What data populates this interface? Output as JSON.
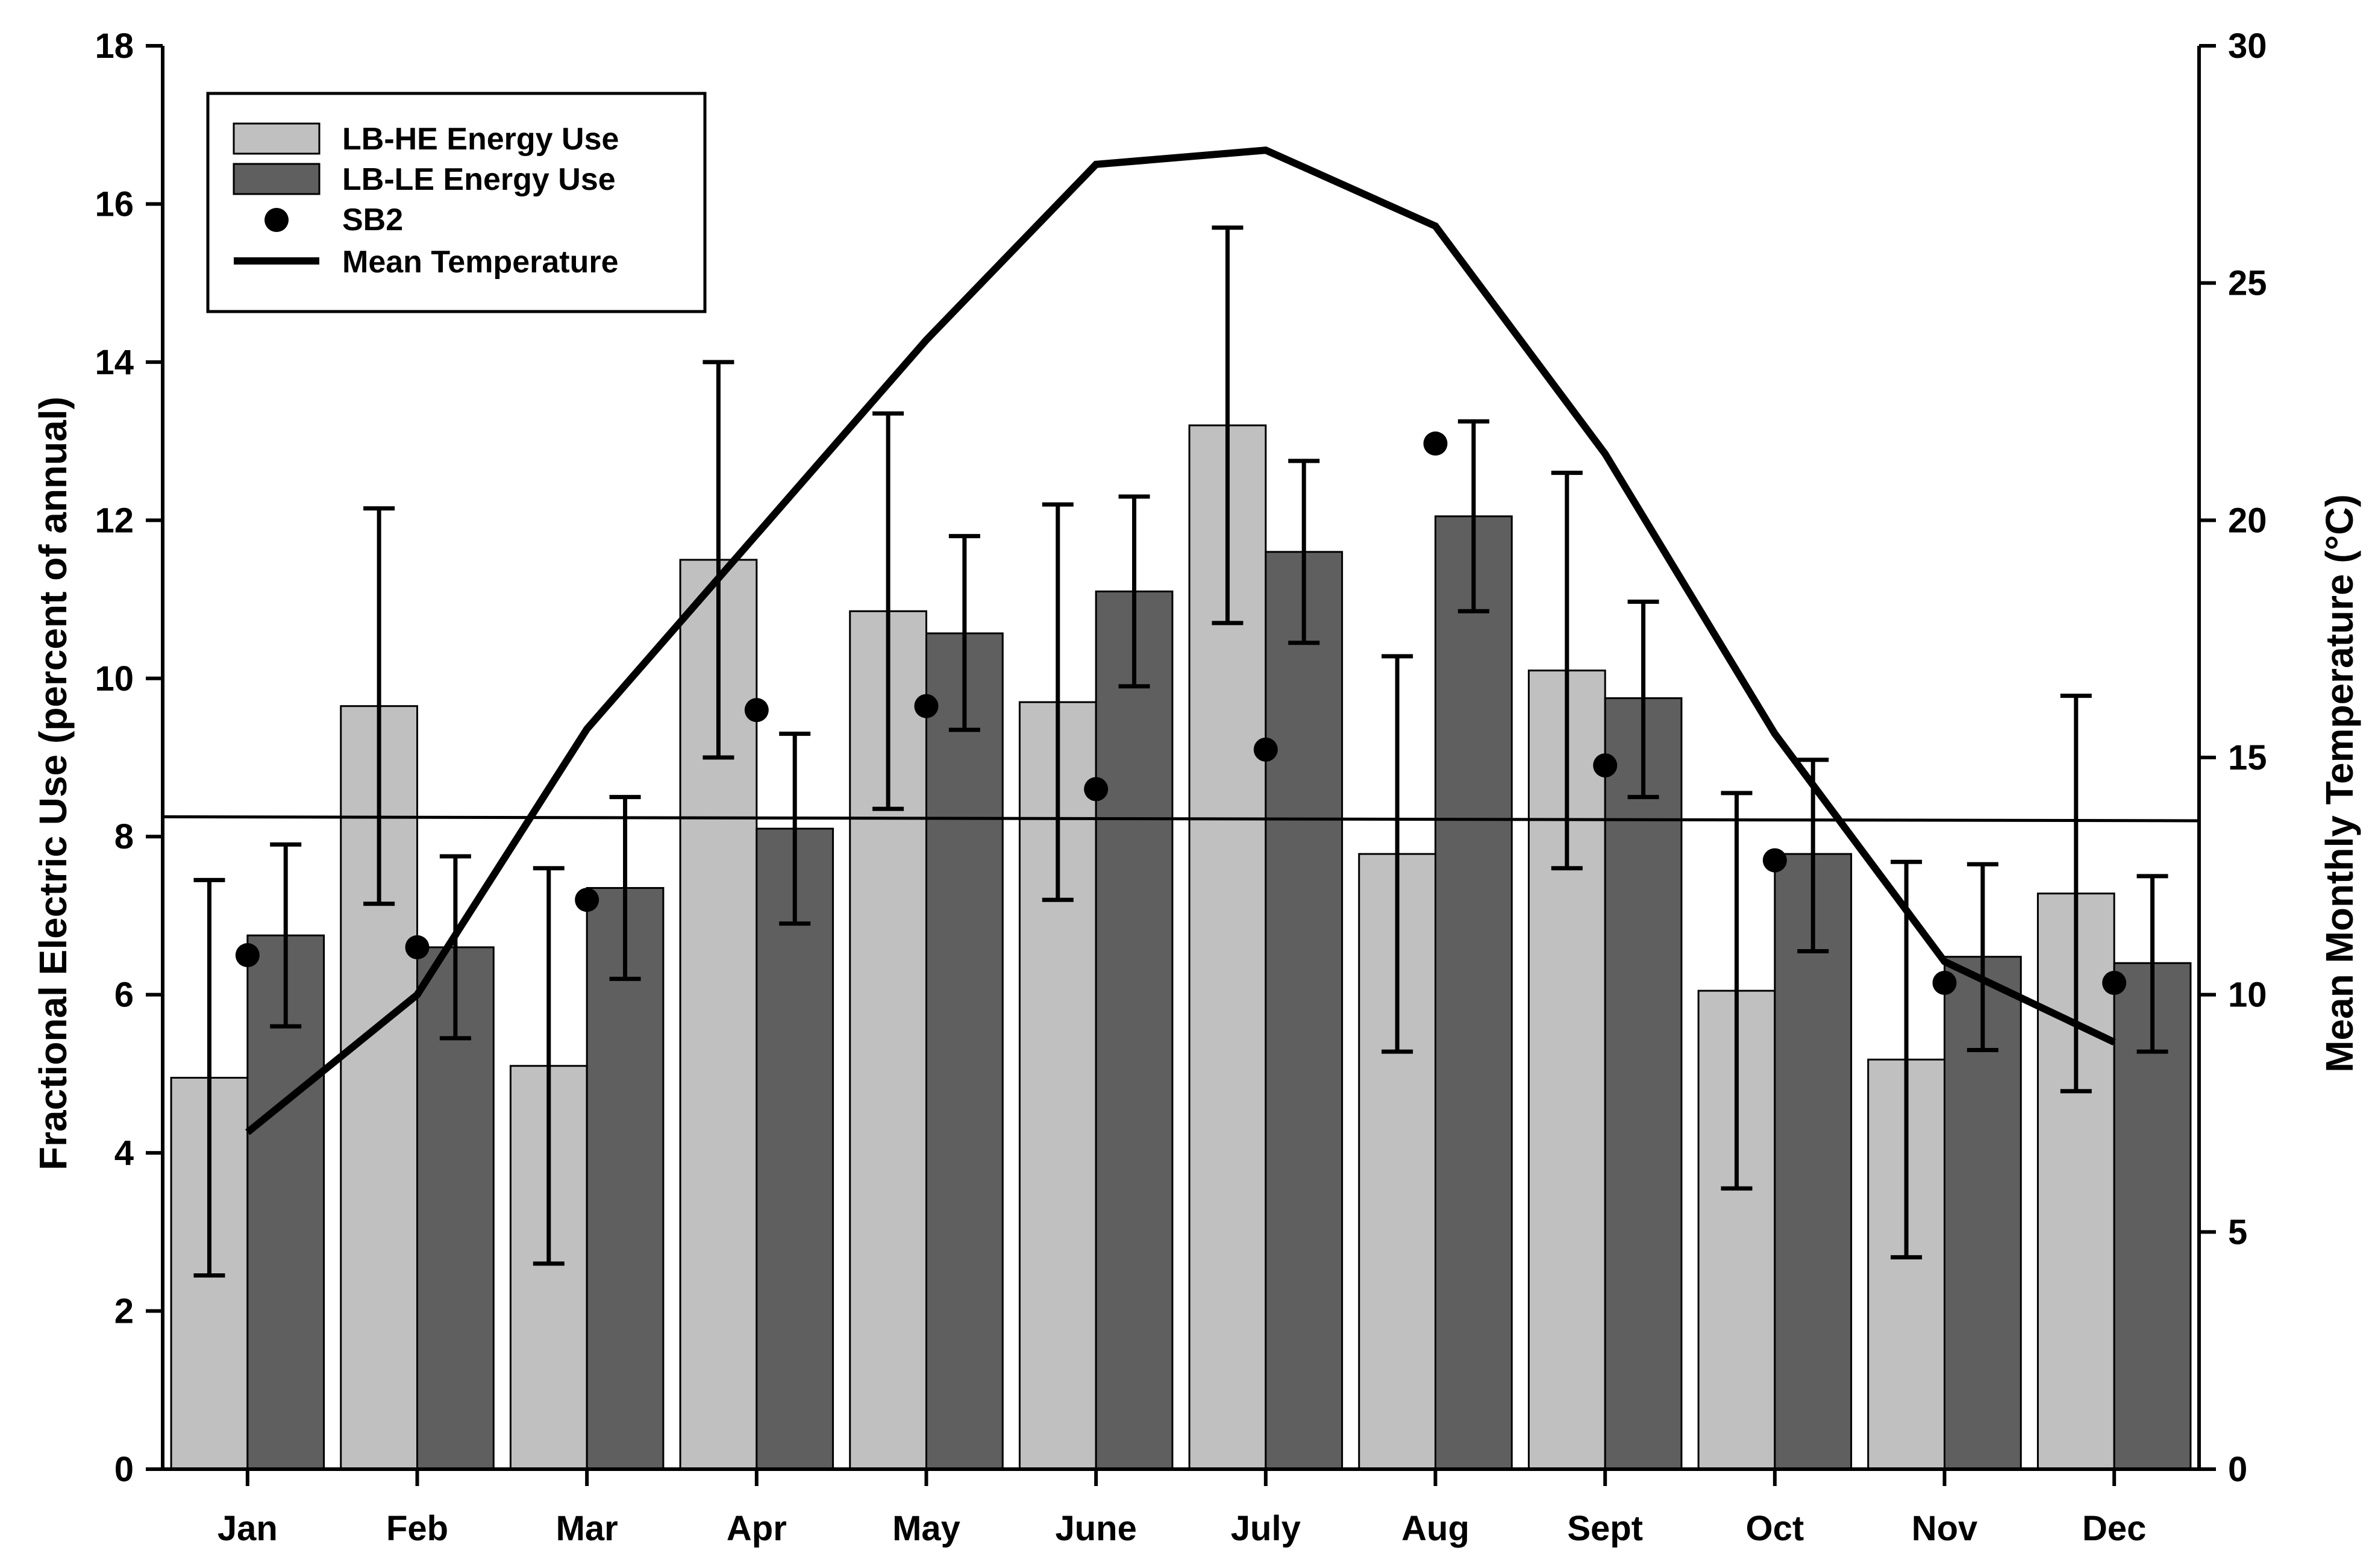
{
  "chart_data": {
    "type": "bar",
    "categories": [
      "Jan",
      "Feb",
      "Mar",
      "Apr",
      "May",
      "June",
      "July",
      "Aug",
      "Sept",
      "Oct",
      "Nov",
      "Dec"
    ],
    "series": [
      {
        "name": "LB-HE Energy Use",
        "kind": "bar",
        "axis": "left",
        "color": "#c0c0c0",
        "values": [
          4.95,
          9.65,
          5.1,
          11.5,
          10.85,
          9.7,
          13.2,
          7.78,
          10.1,
          6.05,
          5.18,
          7.28
        ],
        "error_low": [
          2.45,
          7.15,
          2.6,
          9.0,
          8.35,
          7.2,
          10.7,
          5.28,
          7.6,
          3.55,
          2.68,
          4.78
        ],
        "error_high": [
          7.45,
          12.15,
          7.6,
          14.0,
          13.35,
          12.2,
          15.7,
          10.28,
          12.6,
          8.55,
          7.68,
          9.78
        ]
      },
      {
        "name": "LB-LE Energy Use",
        "kind": "bar",
        "axis": "left",
        "color": "#5f5f5f",
        "values": [
          6.75,
          6.6,
          7.35,
          8.1,
          10.57,
          11.1,
          11.6,
          12.05,
          9.75,
          7.78,
          6.48,
          6.4
        ],
        "error_low": [
          5.6,
          5.45,
          6.2,
          6.9,
          9.35,
          9.9,
          10.45,
          10.85,
          8.5,
          6.55,
          5.3,
          5.28
        ],
        "error_high": [
          7.9,
          7.75,
          8.5,
          9.3,
          11.8,
          12.3,
          12.75,
          13.25,
          10.97,
          8.97,
          7.65,
          7.5
        ]
      },
      {
        "name": "SB2",
        "kind": "scatter",
        "axis": "left",
        "color": "#000000",
        "values": [
          6.5,
          6.6,
          7.2,
          9.6,
          9.65,
          8.6,
          9.1,
          12.97,
          8.9,
          7.7,
          6.15,
          6.15
        ]
      },
      {
        "name": "Mean Temperature",
        "kind": "line",
        "axis": "right",
        "color": "#000000",
        "values": [
          7.1,
          10.0,
          15.6,
          19.7,
          23.8,
          27.5,
          27.8,
          26.2,
          21.4,
          15.5,
          10.7,
          9.0
        ]
      }
    ],
    "reference_line": {
      "axis": "left",
      "y_start": 8.25,
      "y_end": 8.2
    },
    "ylabel": "Fractional Electric Use (percent of annual)",
    "y2label": "Mean Monthly Temperature (°C)",
    "ylim": [
      0,
      18
    ],
    "y2lim": [
      0,
      30
    ],
    "yticks": [
      0,
      2,
      4,
      6,
      8,
      10,
      12,
      14,
      16,
      18
    ],
    "y2ticks": [
      0,
      5,
      10,
      15,
      20,
      25,
      30
    ],
    "legend_position": "top-left",
    "grid": false
  }
}
